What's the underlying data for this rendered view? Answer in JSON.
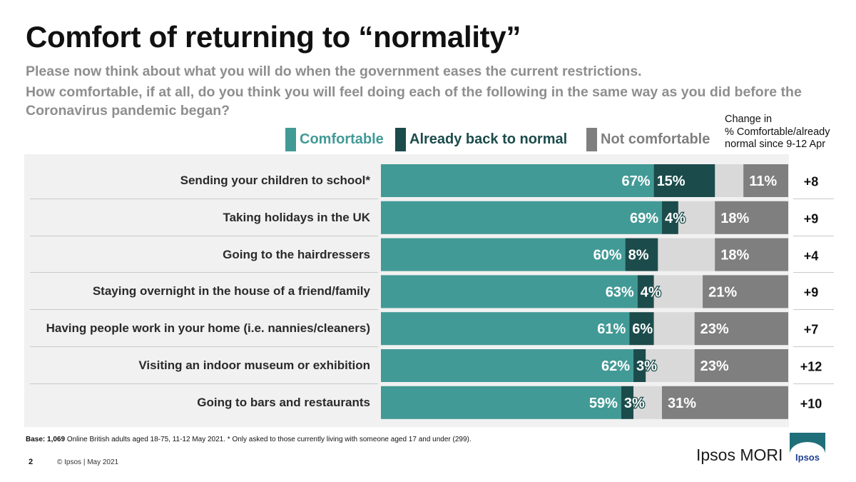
{
  "title": "Comfort of returning to “normality”",
  "subtitle": "Please now think about what you will do when the government eases the current restrictions.",
  "question": "How comfortable, if at all, do you think you will feel doing each of the following in the same way as you did before the Coronavirus pandemic began?",
  "legend": {
    "comfortable": "Comfortable",
    "back_to_normal": "Already back to normal",
    "not_comfortable": "Not comfortable"
  },
  "change_header": [
    "Change in",
    "% Comfortable/already",
    "normal since 9-12 Apr"
  ],
  "colors": {
    "comfortable": "#429a96",
    "back_to_normal": "#1c4b4b",
    "neutral": "#d9d9d9",
    "not_comfortable": "#7f7f7f",
    "panel": "#f1f1f1"
  },
  "chart_data": {
    "type": "bar",
    "orientation": "horizontal-stacked",
    "categories": [
      "Sending your children to school*",
      "Taking holidays in the UK",
      "Going to the hairdressers",
      "Staying overnight in the house of a friend/family",
      "Having people work in your home (i.e. nannies/cleaners)",
      "Visiting an indoor museum or exhibition",
      "Going to bars and restaurants"
    ],
    "series": [
      {
        "name": "Comfortable",
        "values": [
          67,
          69,
          60,
          63,
          61,
          62,
          59
        ]
      },
      {
        "name": "Already back to normal",
        "values": [
          15,
          4,
          8,
          4,
          6,
          3,
          3
        ]
      },
      {
        "name": "Not comfortable",
        "values": [
          11,
          18,
          18,
          21,
          23,
          23,
          31
        ]
      }
    ],
    "change": [
      "+8",
      "+9",
      "+4",
      "+9",
      "+7",
      "+12",
      "+10"
    ],
    "xlim": [
      0,
      100
    ]
  },
  "footer": {
    "base_bold": "Base: 1,069",
    "base_rest": " Online British adults aged 18-75, 11-12 May 2021. * Only asked to those currently living with someone aged 17 and under (299).",
    "page": "2",
    "copyright": "© Ipsos | May 2021",
    "brand": "Ipsos MORI",
    "logo_word": "Ipsos"
  }
}
